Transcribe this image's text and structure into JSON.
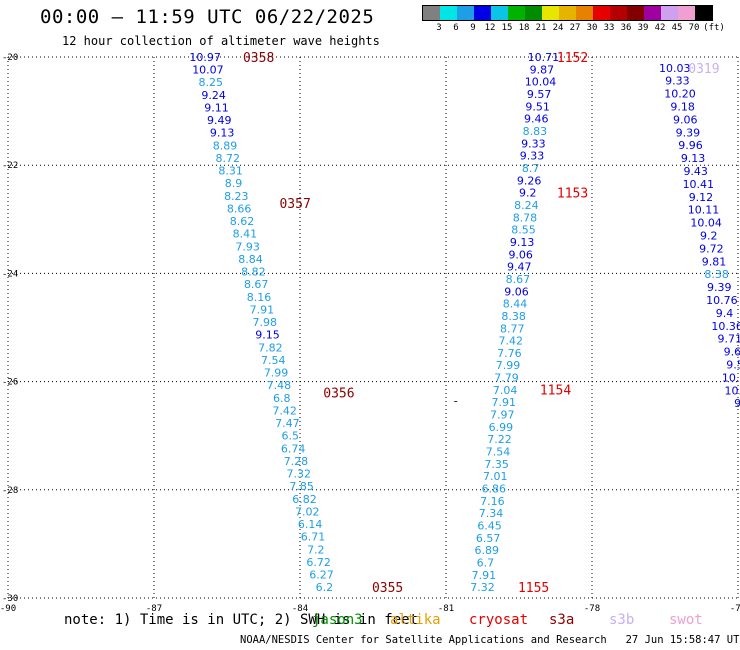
{
  "title": "00:00 – 11:59 UTC 06/22/2025",
  "subtitle": "12 hour collection of altimeter wave heights",
  "colorbar": {
    "unit": "(ft)",
    "labels": [
      "3",
      "6",
      "9",
      "12",
      "15",
      "18",
      "21",
      "24",
      "27",
      "30",
      "33",
      "36",
      "39",
      "42",
      "45",
      "70"
    ],
    "colors": [
      "#808080",
      "#00e5e5",
      "#1e9ee6",
      "#0000e6",
      "#0ac5e6",
      "#00b300",
      "#008c00",
      "#e6e600",
      "#e6b400",
      "#e68200",
      "#e60000",
      "#b40000",
      "#820000",
      "#a000a0",
      "#d0a0f0",
      "#f0a0d0",
      "#000000"
    ]
  },
  "note": "note: 1) Time is in UTC; 2) SWH is in feet",
  "credit": "NOAA/NESDIS Center for Satellite Applications and Research   27 Jun 15:58:47 UTC 2025",
  "satellites": [
    {
      "name": "jason3",
      "color": "#008c00"
    },
    {
      "name": "altika",
      "color": "#e6a000"
    },
    {
      "name": "cryosat",
      "color": "#e60000"
    },
    {
      "name": "s3a",
      "color": "#8c0000"
    },
    {
      "name": "s3b",
      "color": "#c8b0f0"
    },
    {
      "name": "swot",
      "color": "#f0a0d0"
    }
  ],
  "chart_data": {
    "type": "scatter",
    "xlim": [
      -90,
      -75
    ],
    "ylim": [
      -30,
      -20
    ],
    "xticks": [
      -90,
      -87,
      -84,
      -81,
      -78,
      -75
    ],
    "yticks": [
      -20,
      -22,
      -24,
      -26,
      -28,
      -30
    ],
    "xtick_labels": [
      "-90",
      "-87",
      "-84",
      "-81",
      "-78",
      "-75"
    ],
    "ytick_labels": [
      "-20",
      "-22",
      "-24",
      "-26",
      "-28",
      "-30"
    ],
    "grid": true,
    "value_color_classes": [
      {
        "max": 9,
        "color": "#1e9ee6"
      },
      {
        "max": 12,
        "color": "#0000e6"
      }
    ],
    "tracks": [
      {
        "lat_start": -20.0,
        "lat_end": -29.8,
        "lon_start": -85.95,
        "lon_end": -83.5,
        "values": [
          10.97,
          10.07,
          8.25,
          9.24,
          9.11,
          9.49,
          9.13,
          8.89,
          8.72,
          8.31,
          8.9,
          8.23,
          8.66,
          8.62,
          8.41,
          7.93,
          8.84,
          8.82,
          8.67,
          8.16,
          7.91,
          7.98,
          9.15,
          7.82,
          7.54,
          7.99,
          7.48,
          6.8,
          7.42,
          7.47,
          6.5,
          6.74,
          7.28,
          7.32,
          7.85,
          6.82,
          7.02,
          6.14,
          6.71,
          7.2,
          6.72,
          6.27,
          6.2
        ],
        "pass_labels": [
          {
            "text": "0358",
            "lat": -20.0,
            "lon": -84.85,
            "color": "#8c0000"
          },
          {
            "text": "0357",
            "lat": -22.7,
            "lon": -84.1,
            "color": "#8c0000"
          },
          {
            "text": "0356",
            "lat": -26.2,
            "lon": -83.2,
            "color": "#8c0000"
          },
          {
            "text": "0355",
            "lat": -29.8,
            "lon": -82.2,
            "color": "#8c0000"
          }
        ]
      },
      {
        "lat_start": -20.0,
        "lat_end": -29.8,
        "lon_start": -79.0,
        "lon_end": -80.25,
        "values": [
          10.71,
          9.87,
          10.04,
          9.57,
          9.51,
          9.46,
          8.83,
          9.33,
          9.33,
          8.7,
          9.26,
          9.2,
          8.24,
          8.78,
          8.55,
          9.13,
          9.06,
          9.47,
          8.67,
          9.06,
          8.44,
          8.38,
          8.77,
          7.42,
          7.76,
          7.99,
          7.79,
          7.04,
          7.91,
          7.97,
          6.99,
          7.22,
          7.54,
          7.35,
          7.01,
          6.86,
          7.16,
          7.34,
          6.45,
          6.57,
          6.89,
          6.7,
          7.91,
          7.32
        ],
        "pass_labels": [
          {
            "text": "1152",
            "lat": -20.0,
            "lon": -78.4,
            "color": "#e60000"
          },
          {
            "text": "1153",
            "lat": -22.5,
            "lon": -78.4,
            "color": "#e60000"
          },
          {
            "text": "1154",
            "lat": -26.15,
            "lon": -78.75,
            "color": "#e60000"
          },
          {
            "text": "1155",
            "lat": -29.8,
            "lon": -79.2,
            "color": "#e60000"
          }
        ]
      },
      {
        "lat_start": -20.2,
        "lat_end": -26.4,
        "lon_start": -76.3,
        "lon_end": -74.9,
        "values": [
          10.03,
          9.33,
          10.2,
          9.18,
          9.06,
          9.39,
          9.96,
          9.13,
          9.43,
          10.41,
          9.12,
          10.11,
          10.04,
          9.2,
          9.72,
          9.81,
          8.38,
          9.39,
          10.76,
          9.4,
          10.36,
          9.71,
          9.6,
          9.5,
          10.1,
          10.2,
          9.0
        ],
        "pass_labels": [
          {
            "text": "0319",
            "lat": -20.2,
            "lon": -75.7,
            "color": "#c8b0f0"
          }
        ]
      }
    ],
    "marker": {
      "text": "-",
      "lat": -26.35,
      "lon": -80.8
    }
  }
}
